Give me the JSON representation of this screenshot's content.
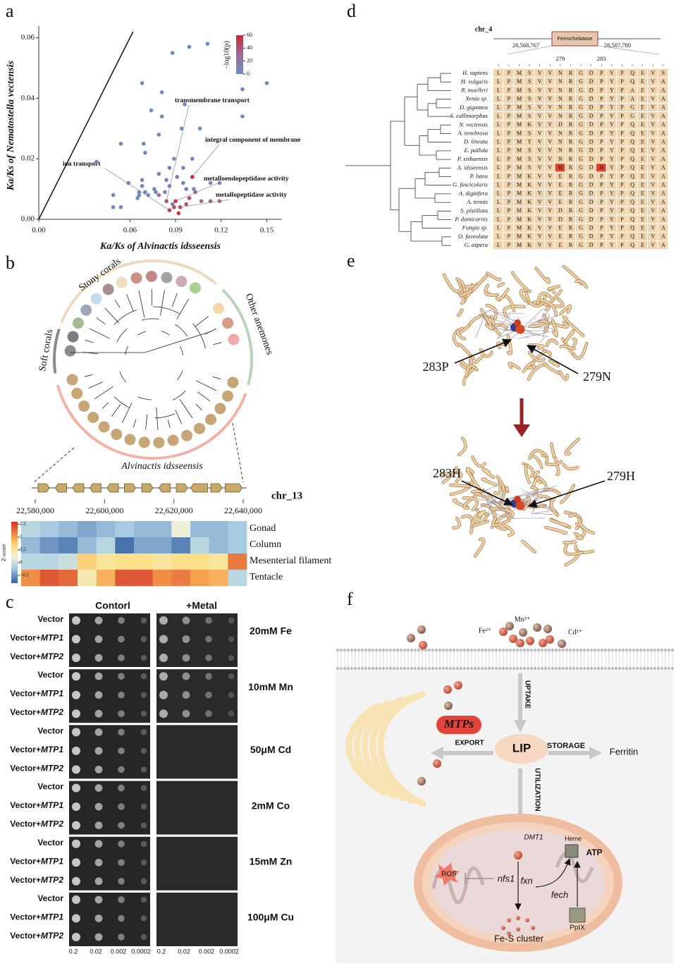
{
  "panel_letters": [
    "a",
    "b",
    "c",
    "d",
    "e",
    "f"
  ],
  "chart_data": [
    {
      "type": "scatter",
      "x_label": "Ka/Ks of Alvinactis idsseensis",
      "y_label": "Ka/Ks of Nematostella vectensis",
      "x": [
        0.038,
        0.049,
        0.049,
        0.054,
        0.054,
        0.059,
        0.066,
        0.066,
        0.065,
        0.068,
        0.068,
        0.07,
        0.069,
        0.068,
        0.074,
        0.076,
        0.077,
        0.079,
        0.081,
        0.081,
        0.079,
        0.083,
        0.084,
        0.086,
        0.088,
        0.089,
        0.086,
        0.088,
        0.091,
        0.094,
        0.095,
        0.096,
        0.099,
        0.095,
        0.097,
        0.101,
        0.102,
        0.106,
        0.111,
        0.113,
        0.119,
        0.134,
        0.134,
        0.15,
        0.07,
        0.072,
        0.079,
        0.084,
        0.086,
        0.089,
        0.09,
        0.093,
        0.097,
        0.099,
        0.101,
        0.103,
        0.107,
        0.113,
        0.119,
        0.092
      ],
      "values": [
        0.019,
        0.008,
        0.004,
        0.004,
        0.025,
        0.012,
        0.009,
        0.008,
        0.007,
        0.011,
        0.013,
        0.022,
        0.025,
        0.045,
        0.036,
        0.01,
        0.009,
        0.028,
        0.042,
        0.034,
        0.015,
        0.009,
        0.013,
        0.017,
        0.055,
        0.02,
        0.011,
        0.005,
        0.014,
        0.03,
        0.017,
        0.038,
        0.057,
        0.012,
        0.01,
        0.02,
        0.01,
        0.03,
        0.058,
        0.012,
        0.012,
        0.034,
        0.043,
        0.045,
        0.009,
        0.008,
        0.008,
        0.006,
        0.003,
        0.004,
        0.006,
        0.004,
        0.005,
        0.007,
        0.014,
        0.009,
        0.006,
        0.006,
        0.006,
        0.002
      ],
      "color_values": [
        5,
        3,
        4,
        2,
        6,
        8,
        4,
        5,
        3,
        7,
        9,
        4,
        3,
        2,
        3,
        6,
        8,
        5,
        2,
        3,
        10,
        7,
        9,
        12,
        2,
        6,
        8,
        15,
        10,
        4,
        9,
        3,
        2,
        11,
        8,
        6,
        12,
        3,
        2,
        10,
        9,
        3,
        2,
        2,
        7,
        5,
        30,
        40,
        50,
        45,
        55,
        45,
        40,
        45,
        60,
        35,
        30,
        35,
        30,
        55
      ],
      "xlim": [
        0,
        0.16
      ],
      "xticks": [
        {
          "value": 0,
          "label": "0.00"
        },
        0.06,
        0.09,
        0.12,
        0.15
      ],
      "ylim": [
        0,
        0.062
      ],
      "yticks": [
        {
          "value": 0,
          "label": "0.00"
        },
        0.02,
        0.04,
        0.06
      ],
      "colorbar_label": "−log10(p)",
      "clim": [
        0,
        60
      ],
      "cticks": [
        0,
        20,
        40,
        60
      ],
      "annotations": [
        "transmembrane transport",
        "integral component of membrane",
        "ion transport",
        "metalloendopeptidase activity",
        "metallopeptidase activity"
      ]
    },
    {
      "type": "heatmap",
      "chromosome": "chr_13",
      "xlim": [
        22580000,
        22640000
      ],
      "xticks": [
        {
          "value": 22580000,
          "label": "22,580,000"
        },
        {
          "value": 22600000,
          "label": "22,600,000"
        },
        {
          "value": 22620000,
          "label": "22,620,000"
        },
        {
          "value": 22640000,
          "label": "22,640,000"
        }
      ],
      "categories": [
        null,
        null,
        null,
        null,
        null,
        null,
        null,
        null,
        null,
        null,
        null,
        null
      ],
      "rows": [
        "Gonad",
        "Column",
        "Mesenterial filament",
        "Tentacle"
      ],
      "values": [
        [
          -0.1,
          -0.2,
          -0.3,
          -0.4,
          -0.3,
          -0.2,
          -0.3,
          -0.3,
          0.2,
          -0.3,
          -0.3,
          -0.2
        ],
        [
          -0.3,
          -0.5,
          -0.6,
          -0.3,
          -0.1,
          -0.7,
          -0.4,
          -0.4,
          -0.6,
          -0.1,
          -0.3,
          -0.2
        ],
        [
          -0.1,
          -0.1,
          0.0,
          0.7,
          0.5,
          0.6,
          0.6,
          0.5,
          0.6,
          0.6,
          0.5,
          1.2
        ],
        [
          1.1,
          1.4,
          1.3,
          0.4,
          0.9,
          1.4,
          1.4,
          1.1,
          1.2,
          1.0,
          0.9,
          -0.1
        ]
      ],
      "colorbar_label": "Z-score",
      "clim": [
        -0.8,
        1.6
      ],
      "cticks": [
        1.5,
        1,
        0.5,
        0,
        {
          "value": -0.5,
          "label": "−0.5"
        }
      ]
    }
  ],
  "tree": {
    "groups": [
      "Stony corals",
      "Other anemones",
      "Soft corals"
    ],
    "focal_species": "Alvinactis idsseensis"
  },
  "spot_assay": {
    "columns": [
      "Contorl",
      "+Metal"
    ],
    "strains": [
      {
        "text": "Vector"
      },
      {
        "text": "Vector+",
        "gene": "MTP1"
      },
      {
        "text": "Vector+",
        "gene": "MTP2"
      }
    ],
    "conditions": [
      "20mM Fe",
      "10mM Mn",
      "50μM Cd",
      "2mM Co",
      "15mM Zn",
      "100μM Cu"
    ],
    "dilutions": [
      0.2,
      0.02,
      0.002,
      0.0002
    ]
  },
  "alignment": {
    "chromosome": "chr_4",
    "gene": "Ferrochelatase",
    "coordinates": [
      "28,568,767",
      "28,587,780"
    ],
    "positions": [
      279,
      283
    ],
    "rows": [
      {
        "species": "H. sapiens",
        "seq": "LPMSVVNRGDPYPQEVS"
      },
      {
        "species": "H. vulgaris",
        "seq": "LPMSVVNRGDPYPQEVA"
      },
      {
        "species": "R. muelleri",
        "seq": "LPMSVVNRGDPYPAEVA"
      },
      {
        "species": "Xenia sp.",
        "seq": "LPMSVVNRGDPYPAEVA"
      },
      {
        "species": "D. gigantea",
        "seq": "LPMSVVNRGDPYPGEVA"
      },
      {
        "species": "S. callimorphus",
        "seq": "LPMSVVNRGDPYPGEVA"
      },
      {
        "species": "N. vectensis",
        "seq": "LPMKVVDRGDPYPQEVA"
      },
      {
        "species": "A. tenebrosa",
        "seq": "LPMSVVNRGDPYPQEVA"
      },
      {
        "species": "D. lineata",
        "seq": "LPMTVVNRGDPYPQEVA"
      },
      {
        "species": "E. pallida",
        "seq": "LPMSVVNRGDPYPQEVA"
      },
      {
        "species": "P. xishaensis",
        "seq": "LPMSVVNRGDPYPQEVA"
      },
      {
        "species": "A. idsseensis",
        "seq": "LPMSVVHRGDHYPQEVA"
      },
      {
        "species": "P. lutea",
        "seq": "LPMKVVERGDPYPQEVA"
      },
      {
        "species": "G. fascicularis",
        "seq": "LPMKVVERGDPYPQEVA"
      },
      {
        "species": "A. digitifera",
        "seq": "LPMKVVERGDPYPQEVA"
      },
      {
        "species": "A. tenuis",
        "seq": "LPMKVVERGDPYPQEVA"
      },
      {
        "species": "S. pistillata",
        "seq": "LPMKVVDRGDPYPQEVA"
      },
      {
        "species": "P. damicornis",
        "seq": "LPMKVVDRGDPYPQEVA"
      },
      {
        "species": "Fungia sp.",
        "seq": "LPMKVVERGDPYPQEVA"
      },
      {
        "species": "O. faveolata",
        "seq": "LPMKVVERGDPYPQEVA"
      },
      {
        "species": "G. aspera",
        "seq": "LPMKVVERGDPYPQEVA"
      }
    ]
  },
  "structure": {
    "labels": [
      "283P",
      "279N",
      "283H",
      "279H"
    ]
  },
  "pathway": {
    "ions": [
      "Fe²⁺",
      "Mn²⁺",
      "Cd²⁺"
    ],
    "uptake": "UPTAKE",
    "transporter": "MTPs",
    "export": "EXPORT",
    "pool": "LIP",
    "storage": "STORAGE",
    "ferritin": "Ferritin",
    "utilization": "UTILIZATION",
    "dmt1": "DMT1",
    "heme": "Heme",
    "atp": "ATP",
    "ros": "ROS",
    "nfs1": "nfs1",
    "fxn": "fxn",
    "fech": "fech",
    "ppix": "PpIX",
    "fes": "Fe-S cluster"
  }
}
